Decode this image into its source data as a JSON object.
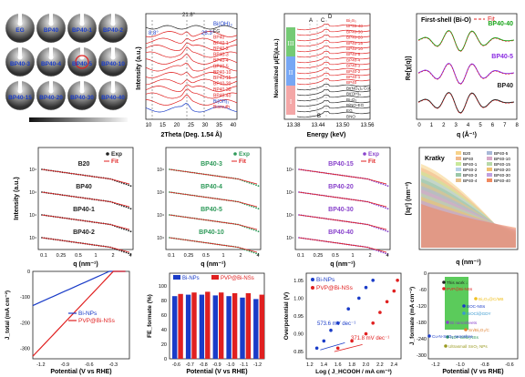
{
  "saxs_images": {
    "labels": [
      "EG",
      "BP40",
      "BP40-1",
      "BP40-2",
      "BP40-3",
      "BP40-4",
      "BP40-5",
      "BP40-10",
      "BP40-15",
      "BP40-20",
      "BP40-30",
      "BP40-40"
    ],
    "colorbar_label": ""
  },
  "xrd": {
    "xlabel": "2Theta (Deg. 1.54 Å)",
    "ylabel": "Intensity (a.u.)",
    "title_label": "Bi(OH)₃",
    "peaks": [
      "8.8°",
      "21.8°",
      "28.3°"
    ],
    "xticks": [
      "10",
      "15",
      "20",
      "25",
      "30",
      "35",
      "40"
    ],
    "legend": [
      "EG",
      "BP40",
      "BP40-1",
      "BP40-2",
      "BP40-3",
      "BP40-4",
      "BP40-5",
      "BP40-10",
      "BP40-15",
      "BP40-20",
      "BP40-30",
      "BP40-40",
      "Bi(OH)₃",
      "Bismuth"
    ]
  },
  "xanes": {
    "xlabel": "Energy (keV)",
    "ylabel": "Normalized μ(E)(a.u.)",
    "xticks": [
      "13.38",
      "13.44",
      "13.50",
      "13.56"
    ],
    "regions": [
      "III",
      "II",
      "I"
    ],
    "markers": [
      "A",
      "B",
      "C",
      "D"
    ],
    "legend": [
      "Bi₂S₃",
      "BP40-40",
      "BP40-30",
      "BP40-20",
      "BP40-15",
      "BP40-10",
      "BP40-5",
      "BP40-4",
      "BP40-3",
      "BP40-2",
      "BP40-1",
      "BP40",
      "Bi(NO₃)₃ Col.",
      "Bi(OH)₃",
      "Bi₂O₃",
      "BiNO-EG",
      "EG",
      "BNO"
    ]
  },
  "exafs": {
    "title": "First-shell (Bi-O)",
    "legend_fit": "Fit",
    "xlabel": "q (Å⁻¹)",
    "ylabel": "Re[χ(q)]",
    "labels": [
      "BP40-40",
      "BP40-5",
      "BP40"
    ],
    "colors": [
      "#1aa51a",
      "#8a2be2",
      "#222222"
    ],
    "xticks": [
      "0",
      "1",
      "2",
      "3",
      "4",
      "5",
      "6",
      "7",
      "8"
    ]
  },
  "saxs_fits": [
    {
      "labels": [
        "B20",
        "BP40",
        "BP40-1",
        "BP40-2"
      ],
      "legend": [
        "Exp",
        "Fit"
      ],
      "color": "#222222",
      "fit": "#e02020",
      "ylabel": "Intensity (a.u.)"
    },
    {
      "labels": [
        "BP40-3",
        "BP40-4",
        "BP40-5",
        "BP40-10"
      ],
      "legend": [
        "Exp",
        "Fit"
      ],
      "color": "#2f9a5a",
      "fit": "#e02020",
      "ylabel": ""
    },
    {
      "labels": [
        "BP40-15",
        "BP40-20",
        "BP40-30",
        "BP40-40"
      ],
      "legend": [
        "Exp",
        "Fit"
      ],
      "color": "#8a44cc",
      "fit": "#e02020",
      "ylabel": ""
    }
  ],
  "saxs_xlabel": "q (nm⁻¹)",
  "saxs_xticks": [
    "0.1",
    "0.25",
    "0.5",
    "1",
    "2",
    "4"
  ],
  "kratky": {
    "title": "Kratky",
    "ylabel": "[Iq²] (nm⁻²)",
    "xlabel": "q (nm⁻¹)",
    "legend": [
      "B20",
      "BP40",
      "BP40-1",
      "BP40-2",
      "BP40-3",
      "BP40-4",
      "BP40-5",
      "BP40-10",
      "BP40-15",
      "BP40-20",
      "BP40-30",
      "BP40-40"
    ]
  },
  "lsv": {
    "xlabel": "Potential (V vs RHE)",
    "ylabel": "J_total (mA cm⁻²)",
    "legend": [
      "Bi-NPs",
      "PVP@Bi-NSs"
    ],
    "colors": [
      "#1a3cc8",
      "#e02020"
    ],
    "xticks": [
      "-1.2",
      "-0.9",
      "-0.6",
      "-0.3"
    ],
    "yticks": [
      "0",
      "-100",
      "-200",
      "-300"
    ]
  },
  "fe": {
    "ylabel": "FE_formate (%)",
    "xlabel": "Potential (V vs RHE)",
    "legend": [
      "Bi-NPs",
      "PVP@Bi-NSs"
    ],
    "xticks": [
      "-0.6",
      "-0.7",
      "-0.8",
      "-0.9",
      "-1.0",
      "-1.1",
      "-1.2"
    ],
    "yticks": [
      "0",
      "20",
      "40",
      "60",
      "80",
      "100"
    ],
    "chart_data": {
      "type": "bar",
      "categories": [
        "-0.6",
        "-0.7",
        "-0.8",
        "-0.9",
        "-1.0",
        "-1.1",
        "-1.2"
      ],
      "series": [
        {
          "name": "Bi-NPs",
          "values": [
            86,
            88,
            88,
            87,
            86,
            84,
            82
          ]
        },
        {
          "name": "PVP@Bi-NSs",
          "values": [
            89,
            91,
            92,
            91,
            90,
            90,
            88
          ]
        }
      ],
      "ylim": [
        0,
        100
      ]
    }
  },
  "tafel": {
    "ylabel": "Overpotential (V)",
    "xlabel": "Log ( J_HCOOH / mA cm⁻²)",
    "legend": [
      "Bi-NPs",
      "PVP@Bi-NSs"
    ],
    "slopes": [
      "573.6 mV dec⁻¹",
      "371.8 mV dec⁻¹"
    ],
    "xticks": [
      "1.2",
      "1.4",
      "1.6",
      "1.8",
      "2.0",
      "2.2",
      "2.4"
    ],
    "yticks": [
      "0.85",
      "0.90",
      "0.95",
      "1.00",
      "1.05"
    ]
  },
  "compare": {
    "ylabel": "J_formate (mA cm⁻²)",
    "xlabel": "Potential (V vs RHE)",
    "xticks": [
      "-1.2",
      "-1.0",
      "-0.8",
      "-0.6"
    ],
    "yticks": [
      "0",
      "-60",
      "-120",
      "-180",
      "-240",
      "-300"
    ],
    "labels": [
      "This work ↓",
      "PVP@Bi-NSs",
      "Bi₂O₃@C/MB",
      "BOC-NSs",
      "BiOCl@GDY",
      "Bi nanosheets",
      "Sn/Bi₂O₃/C",
      "NDF-Bi/Bi₂NSs",
      "Ultrasmall SnO₂ NPs",
      "Cu-N-SnO₂ nanoshee"
    ]
  }
}
